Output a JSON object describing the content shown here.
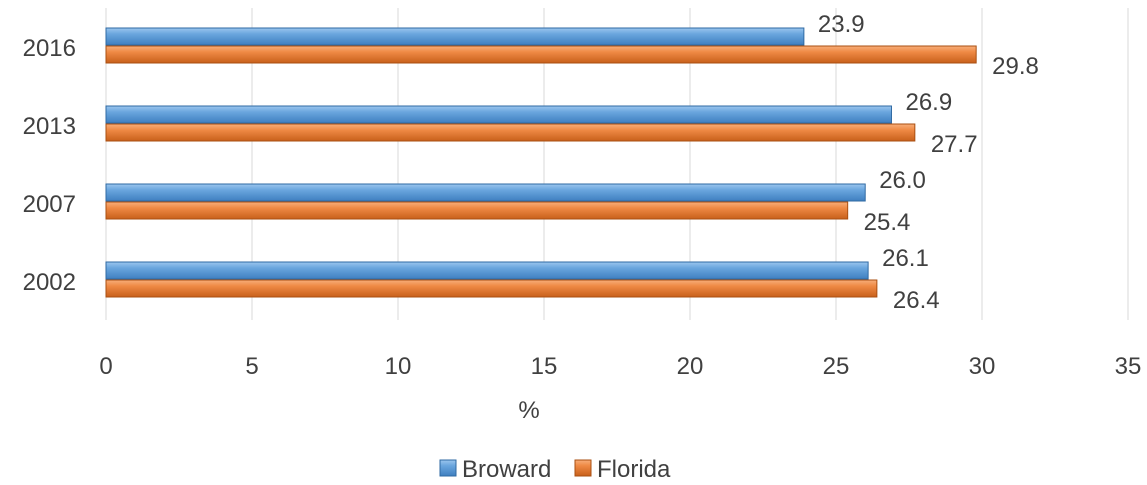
{
  "chart_data": {
    "type": "bar",
    "orientation": "horizontal",
    "categories": [
      "2016",
      "2013",
      "2007",
      "2002"
    ],
    "series": [
      {
        "name": "Broward",
        "values": [
          23.9,
          26.9,
          26.0,
          26.1
        ],
        "labels": [
          "23.9",
          "26.9",
          "26.0",
          "26.1"
        ],
        "color": "#5B9BD5"
      },
      {
        "name": "Florida",
        "values": [
          29.8,
          27.7,
          25.4,
          26.4
        ],
        "labels": [
          "29.8",
          "27.7",
          "25.4",
          "26.4"
        ],
        "color": "#ED7D31"
      }
    ],
    "xlabel": "%",
    "xlim": [
      0,
      35
    ],
    "xticks": [
      "0",
      "5",
      "10",
      "15",
      "20",
      "25",
      "30",
      "35"
    ],
    "grid": "vertical",
    "legend": "bottom"
  }
}
